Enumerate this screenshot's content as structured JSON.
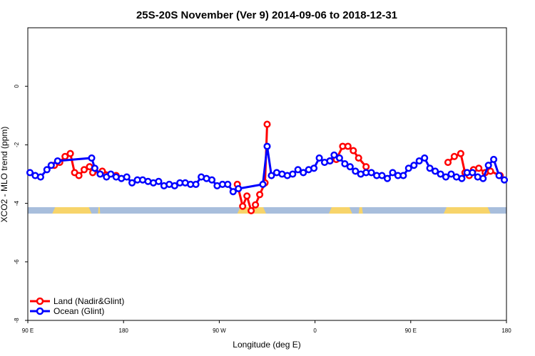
{
  "chart_data": {
    "type": "line",
    "title": "25S-20S November (Ver 9)   2014-09-06 to 2018-12-31",
    "xlabel": "Longitude (deg E)",
    "ylabel": "XCO2 - MLO trend (ppm)",
    "xlim": [
      90,
      540
    ],
    "ylim": [
      -8,
      2
    ],
    "x_ticks": [
      {
        "value": 90,
        "label": "90 E"
      },
      {
        "value": 180,
        "label": "180"
      },
      {
        "value": 270,
        "label": "90 W"
      },
      {
        "value": 360,
        "label": "0"
      },
      {
        "value": 450,
        "label": "90 E"
      },
      {
        "value": 540,
        "label": "180"
      }
    ],
    "y_ticks": [
      {
        "value": 0,
        "label": "0"
      },
      {
        "value": -2,
        "label": "-2"
      },
      {
        "value": -4,
        "label": "-4"
      },
      {
        "value": -6,
        "label": "-6"
      },
      {
        "value": -8,
        "label": "-8"
      }
    ],
    "grid": false,
    "legend_position": "bottom-left",
    "series": [
      {
        "name": "Land (Nadir&Glint)",
        "color": "#ff0000",
        "x": [
          115,
          120,
          125,
          130,
          134,
          138,
          143,
          148,
          151,
          160,
          173
        ],
        "y": [
          -2.7,
          -2.6,
          -2.4,
          -2.3,
          -2.95,
          -3.05,
          -2.85,
          -2.75,
          -2.95,
          -2.9,
          -3.05
        ]
      },
      {
        "name": "Land (Nadir&Glint)",
        "color": "#ff0000",
        "x": [
          287,
          292,
          296,
          300,
          304,
          308,
          313,
          315
        ],
        "y": [
          -3.35,
          -4.1,
          -3.75,
          -4.25,
          -4.05,
          -3.7,
          -3.3,
          -1.3
        ]
      },
      {
        "name": "Land (Nadir&Glint)",
        "color": "#ff0000",
        "x": [
          374,
          380,
          386,
          391,
          396,
          401,
          408
        ],
        "y": [
          -2.55,
          -2.5,
          -2.05,
          -2.05,
          -2.2,
          -2.45,
          -2.75
        ]
      },
      {
        "name": "Land (Nadir&Glint)",
        "color": "#ff0000",
        "x": [
          485,
          491,
          497,
          501,
          505,
          509,
          514,
          520,
          525,
          534
        ],
        "y": [
          -2.6,
          -2.4,
          -2.3,
          -2.95,
          -3.05,
          -2.85,
          -2.8,
          -2.95,
          -2.9,
          -3.05
        ]
      },
      {
        "name": "Ocean (Glint)",
        "color": "#0000ff",
        "x": [
          92,
          97,
          102,
          108,
          112,
          118,
          150,
          153,
          158,
          164,
          168,
          173,
          178,
          183,
          188,
          193,
          198,
          203,
          208,
          213,
          218,
          223,
          228,
          233,
          238,
          243,
          248,
          253,
          258,
          263,
          268,
          273,
          278,
          283,
          288,
          311,
          315,
          319,
          324,
          329,
          334,
          339,
          344,
          349,
          354,
          359,
          364,
          369,
          374,
          378,
          383,
          388,
          393,
          398,
          403,
          408,
          413,
          418,
          423,
          428,
          433,
          438,
          443,
          448,
          453,
          458,
          463,
          468,
          473,
          478,
          483,
          488,
          493,
          498,
          503,
          508,
          513,
          518,
          523,
          528,
          533,
          538
        ],
        "y": [
          -2.95,
          -3.05,
          -3.1,
          -2.85,
          -2.7,
          -2.55,
          -2.45,
          -2.8,
          -3.0,
          -3.1,
          -3.0,
          -3.1,
          -3.15,
          -3.1,
          -3.3,
          -3.2,
          -3.2,
          -3.25,
          -3.3,
          -3.25,
          -3.4,
          -3.35,
          -3.4,
          -3.3,
          -3.3,
          -3.35,
          -3.35,
          -3.1,
          -3.15,
          -3.2,
          -3.4,
          -3.35,
          -3.35,
          -3.6,
          -3.5,
          -3.35,
          -2.05,
          -3.05,
          -2.95,
          -3.0,
          -3.05,
          -3.0,
          -2.85,
          -2.95,
          -2.85,
          -2.8,
          -2.45,
          -2.6,
          -2.55,
          -2.35,
          -2.45,
          -2.65,
          -2.75,
          -2.9,
          -3.0,
          -2.95,
          -2.95,
          -3.05,
          -3.05,
          -3.15,
          -2.95,
          -3.05,
          -3.05,
          -2.8,
          -2.7,
          -2.55,
          -2.45,
          -2.8,
          -2.9,
          -3.0,
          -3.1,
          -3.0,
          -3.1,
          -3.15,
          -2.95,
          -2.95,
          -3.1,
          -3.15,
          -2.7,
          -2.5,
          -3.05,
          -3.2
        ]
      }
    ],
    "land_ocean_strip": {
      "ocean_color": "#a8bedc",
      "land_color": "#f7d46a",
      "land_spans": [
        [
          113,
          150
        ],
        [
          156,
          158
        ],
        [
          287,
          314
        ],
        [
          373,
          395
        ],
        [
          401,
          405
        ],
        [
          481,
          525
        ]
      ]
    }
  }
}
